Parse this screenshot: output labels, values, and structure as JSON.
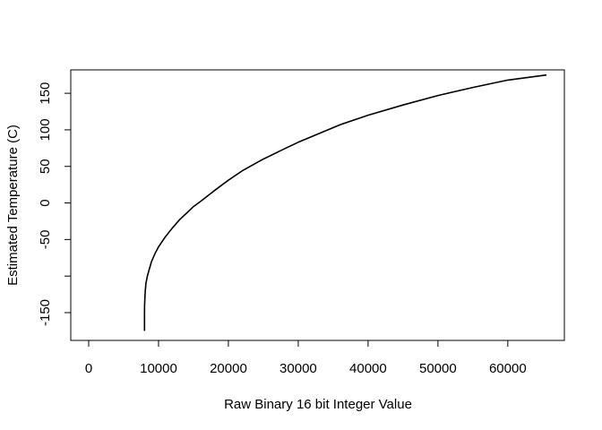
{
  "chart_data": {
    "type": "line",
    "title": "",
    "xlabel": "Raw Binary 16 bit Integer Value",
    "ylabel": "Estimated Temperature (C)",
    "xlim": [
      0,
      65535
    ],
    "ylim": [
      -188,
      182
    ],
    "x_ticks": [
      0,
      10000,
      20000,
      30000,
      40000,
      50000,
      60000
    ],
    "x_tick_labels": [
      "0",
      "10000",
      "20000",
      "30000",
      "40000",
      "50000",
      "60000"
    ],
    "y_ticks": [
      -150,
      -100,
      -50,
      0,
      50,
      100,
      150
    ],
    "y_tick_labels": [
      "-150",
      "",
      "-50",
      "0",
      "50",
      "100",
      "150"
    ],
    "grid": false,
    "series": [
      {
        "x": [
          7985,
          7990,
          8000,
          8050,
          8100,
          8200,
          8400,
          8700,
          9000,
          9500,
          10000,
          11000,
          12000,
          13000,
          14000,
          15000,
          16000,
          18000,
          20000,
          22000,
          25000,
          28000,
          30000,
          33000,
          36000,
          40000,
          45000,
          50000,
          55000,
          60000,
          65535
        ],
        "y": [
          -175,
          -150,
          -140,
          -128,
          -120,
          -110,
          -100,
          -90,
          -80,
          -69,
          -60,
          -46,
          -34,
          -23,
          -14,
          -5,
          2,
          17,
          31,
          44,
          60,
          74,
          83,
          95,
          107,
          120,
          134,
          147,
          158,
          168,
          175
        ]
      }
    ]
  }
}
